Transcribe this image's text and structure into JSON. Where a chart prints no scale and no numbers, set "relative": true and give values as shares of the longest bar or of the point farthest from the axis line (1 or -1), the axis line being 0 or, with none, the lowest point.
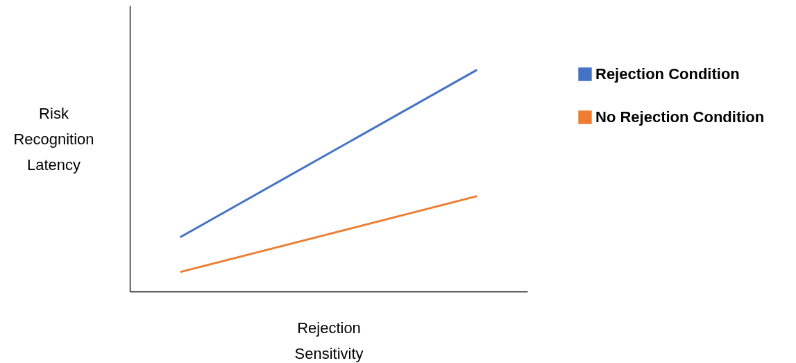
{
  "chart_data": {
    "type": "line",
    "xlabel": "Rejection Sensitivity",
    "ylabel": "Risk Recognition Latency",
    "categories": [
      null,
      null
    ],
    "relative": true,
    "legend": "right",
    "marker": "none",
    "line_style": "solid",
    "series": [
      {
        "name": "Rejection Condition",
        "color": "#4472c4",
        "values": [
          0.245,
          1
        ]
      },
      {
        "name": "No Rejection Condition",
        "color": "#ed7d31",
        "values": [
          0.088,
          0.43
        ]
      }
    ]
  }
}
